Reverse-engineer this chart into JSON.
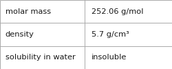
{
  "rows": [
    {
      "label": "molar mass",
      "value": "252.06 g/mol"
    },
    {
      "label": "density",
      "value": "5.7 g/cm³"
    },
    {
      "label": "solubility in water",
      "value": "insoluble"
    }
  ],
  "col_split": 0.492,
  "background_color": "#ffffff",
  "line_color": "#aaaaaa",
  "text_color": "#1a1a1a",
  "font_size": 8.2,
  "fig_width": 2.5,
  "fig_height": 1.0,
  "dpi": 100
}
